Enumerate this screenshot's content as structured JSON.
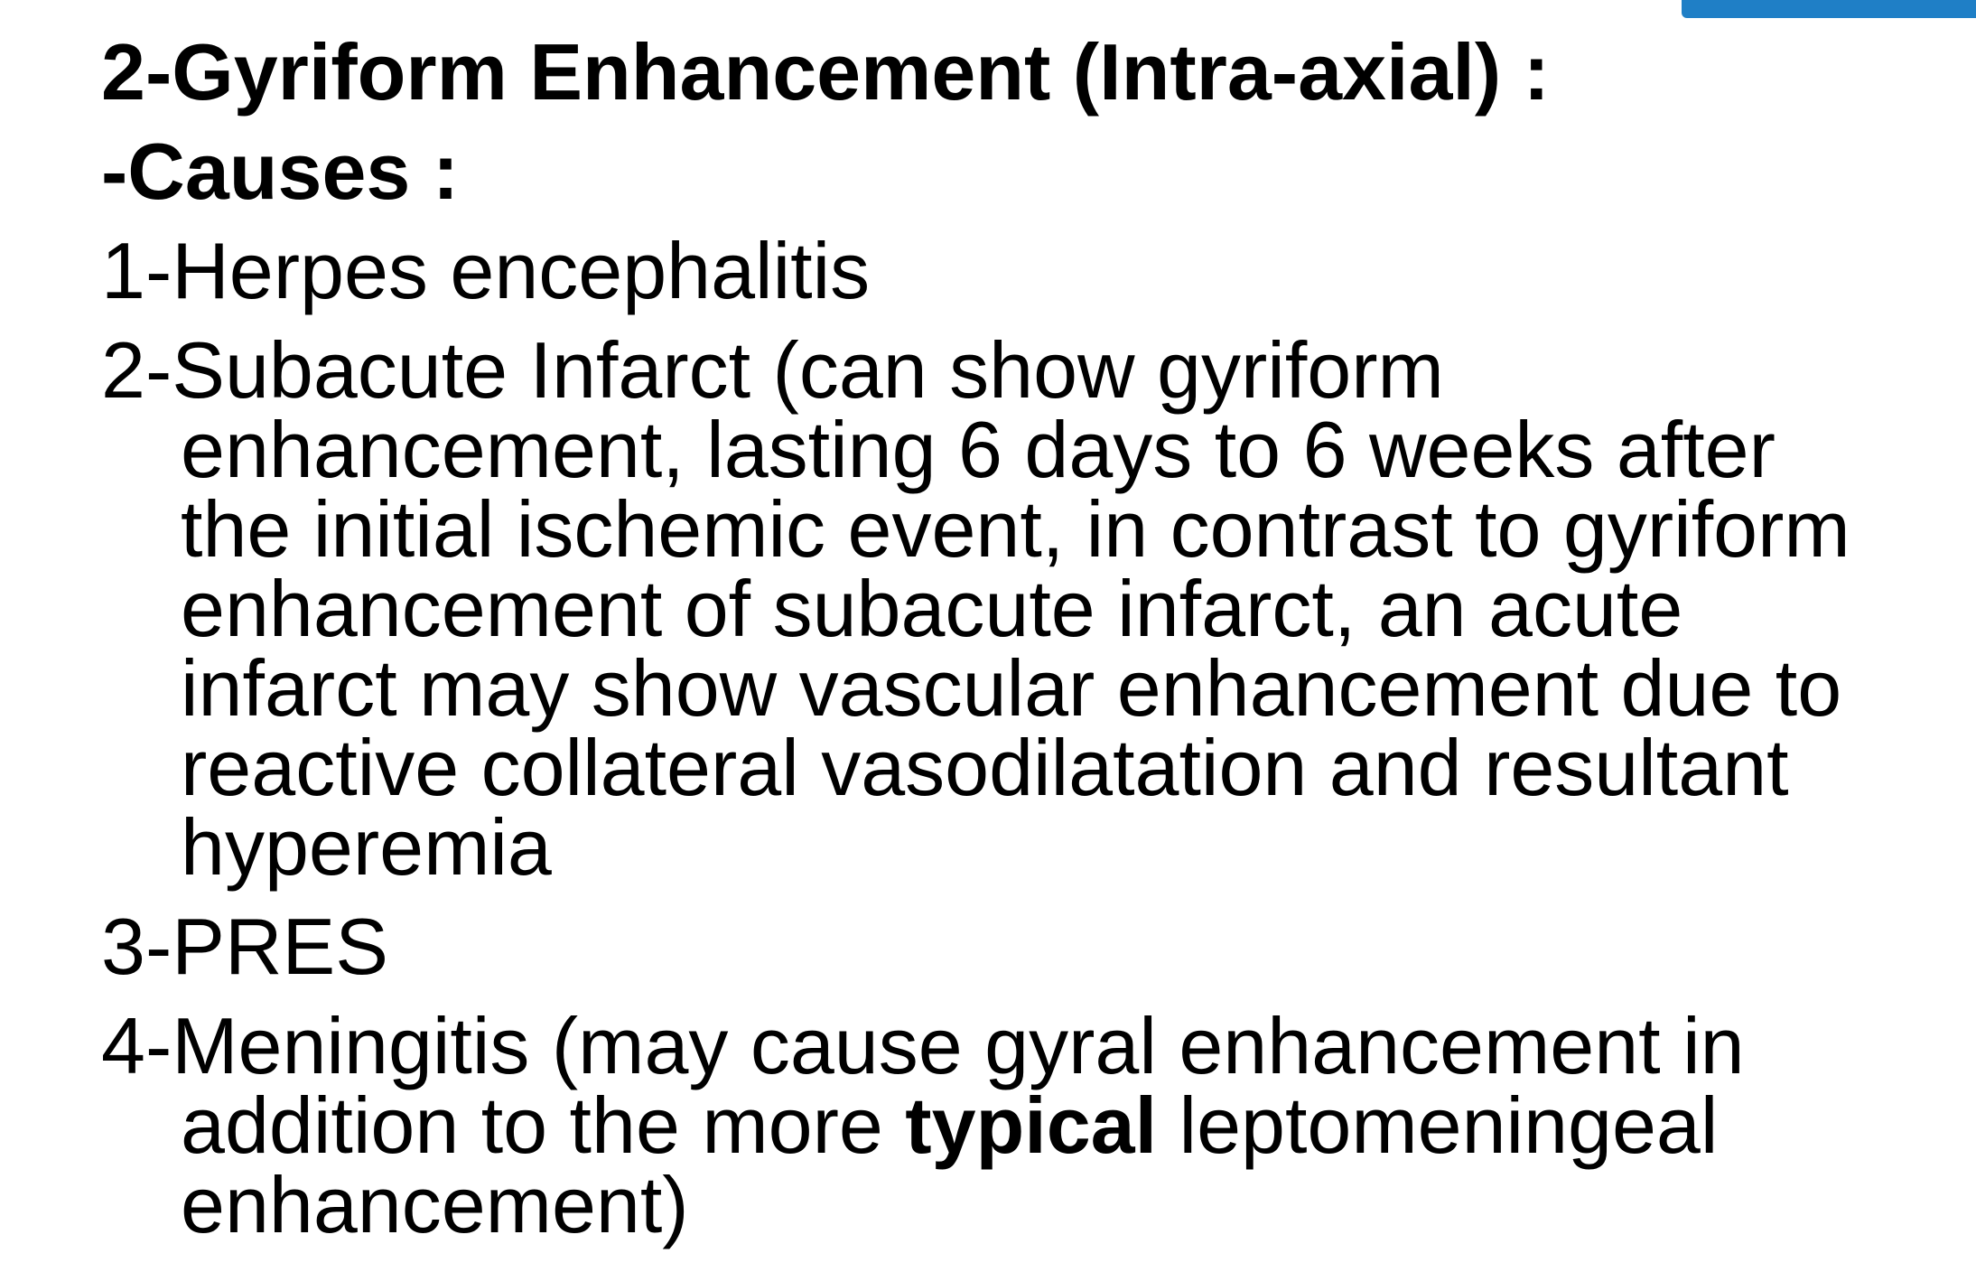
{
  "slide": {
    "title": "2-Gyriform Enhancement (Intra-axial) :",
    "subtitle": "-Causes :",
    "item1": "1-Herpes encephalitis",
    "item2": {
      "l1": "2-Subacute Infarct (can show gyriform",
      "l2": "enhancement, lasting 6 days to 6 weeks after",
      "l3": "the initial ischemic event, in contrast to gyriform",
      "l4": "enhancement of subacute infarct, an acute",
      "l5": "infarct may show vascular enhancement due to",
      "l6": "reactive collateral vasodilatation and resultant",
      "l7": "hyperemia"
    },
    "item3": "3-PRES",
    "item4": {
      "l1": "4-Meningitis (may cause gyral enhancement in",
      "l2_pre": "addition to the more ",
      "l2_bold": "typical",
      "l2_post": " leptomeningeal",
      "l3": "enhancement)"
    }
  },
  "colors": {
    "text": "#000000",
    "background": "#ffffff",
    "accent_bar": "#1f7fc6"
  }
}
